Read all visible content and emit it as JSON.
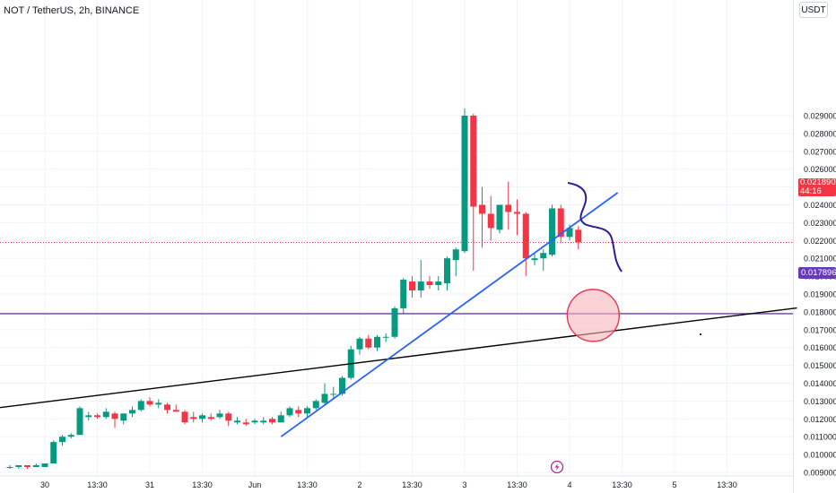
{
  "header": {
    "symbol_title": "NOT / TetherUS, 2h, BINANCE",
    "currency_button": "USDT"
  },
  "last_price": {
    "value": "0.021890",
    "countdown": "44:16",
    "color": "#f23645"
  },
  "horizontal_line": {
    "value": "0.017896",
    "color": "#673ab7"
  },
  "chart_data": {
    "type": "candlestick",
    "title": "NOT / TetherUS, 2h, BINANCE",
    "ylim": [
      0.0088,
      0.0297
    ],
    "y_ticks": [
      "0.009000",
      "0.010000",
      "0.011000",
      "0.012000",
      "0.013000",
      "0.014000",
      "0.015000",
      "0.016000",
      "0.017000",
      "0.018000",
      "0.019000",
      "0.020000",
      "0.021000",
      "0.022000",
      "0.023000",
      "0.024000",
      "0.025000",
      "0.026000",
      "0.027000",
      "0.028000",
      "0.029000"
    ],
    "x_ticks": [
      {
        "label": "30",
        "i": 4
      },
      {
        "label": "13:30",
        "i": 10
      },
      {
        "label": "31",
        "i": 16
      },
      {
        "label": "13:30",
        "i": 22
      },
      {
        "label": "Jun",
        "i": 28
      },
      {
        "label": "13:30",
        "i": 34
      },
      {
        "label": "2",
        "i": 40
      },
      {
        "label": "13:30",
        "i": 46
      },
      {
        "label": "3",
        "i": 52
      },
      {
        "label": "13:30",
        "i": 58
      },
      {
        "label": "4",
        "i": 64
      },
      {
        "label": "13:30",
        "i": 70
      },
      {
        "label": "5",
        "i": 76
      },
      {
        "label": "13:30",
        "i": 82
      }
    ],
    "up_color": "#089981",
    "down_color": "#f23645",
    "candles": [
      [
        0.0093,
        0.0094,
        0.0092,
        0.0093
      ],
      [
        0.0093,
        0.0094,
        0.0092,
        0.0094
      ],
      [
        0.0094,
        0.0094,
        0.0092,
        0.0093
      ],
      [
        0.0093,
        0.0095,
        0.0093,
        0.0094
      ],
      [
        0.0093,
        0.0095,
        0.0093,
        0.0095
      ],
      [
        0.0095,
        0.0108,
        0.0095,
        0.0107
      ],
      [
        0.0107,
        0.0111,
        0.0105,
        0.011
      ],
      [
        0.011,
        0.0112,
        0.0109,
        0.0111
      ],
      [
        0.0111,
        0.0127,
        0.0111,
        0.0126
      ],
      [
        0.0121,
        0.0124,
        0.0119,
        0.0122
      ],
      [
        0.0122,
        0.0123,
        0.012,
        0.0121
      ],
      [
        0.0121,
        0.0126,
        0.012,
        0.0124
      ],
      [
        0.0123,
        0.0124,
        0.0115,
        0.012
      ],
      [
        0.0119,
        0.0123,
        0.0117,
        0.0123
      ],
      [
        0.0123,
        0.0127,
        0.0121,
        0.0125
      ],
      [
        0.0125,
        0.0131,
        0.0124,
        0.013
      ],
      [
        0.013,
        0.0132,
        0.0127,
        0.0128
      ],
      [
        0.0128,
        0.0131,
        0.0126,
        0.0129
      ],
      [
        0.0128,
        0.0129,
        0.0123,
        0.0125
      ],
      [
        0.0125,
        0.0128,
        0.0124,
        0.0124
      ],
      [
        0.0124,
        0.0125,
        0.0117,
        0.0118
      ],
      [
        0.0121,
        0.0124,
        0.0118,
        0.012
      ],
      [
        0.012,
        0.0123,
        0.0118,
        0.0122
      ],
      [
        0.0121,
        0.0123,
        0.0119,
        0.012
      ],
      [
        0.0121,
        0.0125,
        0.012,
        0.0123
      ],
      [
        0.0123,
        0.0124,
        0.0116,
        0.0119
      ],
      [
        0.0118,
        0.0121,
        0.0117,
        0.0119
      ],
      [
        0.0118,
        0.012,
        0.0116,
        0.0117
      ],
      [
        0.0118,
        0.012,
        0.0117,
        0.0119
      ],
      [
        0.0118,
        0.0121,
        0.0117,
        0.0119
      ],
      [
        0.012,
        0.0121,
        0.0117,
        0.0118
      ],
      [
        0.0118,
        0.0124,
        0.0118,
        0.0122
      ],
      [
        0.0122,
        0.0127,
        0.0121,
        0.0126
      ],
      [
        0.0125,
        0.0127,
        0.0121,
        0.0123
      ],
      [
        0.0123,
        0.0127,
        0.0121,
        0.0126
      ],
      [
        0.0126,
        0.0131,
        0.0125,
        0.013
      ],
      [
        0.0129,
        0.014,
        0.0128,
        0.0134
      ],
      [
        0.0134,
        0.0138,
        0.0131,
        0.0134
      ],
      [
        0.0134,
        0.0144,
        0.0133,
        0.0143
      ],
      [
        0.0143,
        0.0161,
        0.0142,
        0.0159
      ],
      [
        0.0159,
        0.0166,
        0.0156,
        0.0165
      ],
      [
        0.0165,
        0.0167,
        0.0159,
        0.016
      ],
      [
        0.016,
        0.0167,
        0.0158,
        0.0166
      ],
      [
        0.0166,
        0.0168,
        0.0163,
        0.0166
      ],
      [
        0.0166,
        0.0183,
        0.0165,
        0.0182
      ],
      [
        0.0182,
        0.0199,
        0.0179,
        0.0198
      ],
      [
        0.0197,
        0.02,
        0.0188,
        0.0192
      ],
      [
        0.0192,
        0.0209,
        0.0188,
        0.0197
      ],
      [
        0.0197,
        0.02,
        0.0193,
        0.0195
      ],
      [
        0.0195,
        0.02,
        0.0192,
        0.0197
      ],
      [
        0.0196,
        0.0211,
        0.0192,
        0.021
      ],
      [
        0.0209,
        0.0216,
        0.02,
        0.0215
      ],
      [
        0.0214,
        0.0294,
        0.0213,
        0.029
      ],
      [
        0.029,
        0.0291,
        0.0203,
        0.0239
      ],
      [
        0.024,
        0.025,
        0.0216,
        0.0235
      ],
      [
        0.0235,
        0.0245,
        0.022,
        0.0227
      ],
      [
        0.0226,
        0.024,
        0.0224,
        0.024
      ],
      [
        0.024,
        0.0253,
        0.0226,
        0.0236
      ],
      [
        0.0236,
        0.0243,
        0.0223,
        0.0235
      ],
      [
        0.0235,
        0.0236,
        0.02,
        0.021
      ],
      [
        0.0209,
        0.0213,
        0.0206,
        0.021
      ],
      [
        0.021,
        0.0215,
        0.0203,
        0.0213
      ],
      [
        0.0212,
        0.024,
        0.0211,
        0.0238
      ],
      [
        0.0238,
        0.024,
        0.0219,
        0.0222
      ],
      [
        0.0222,
        0.0229,
        0.022,
        0.0227
      ],
      [
        0.0226,
        0.0228,
        0.0215,
        0.0219
      ]
    ]
  },
  "drawings": {
    "black_trendline": {
      "from": {
        "i": -9,
        "y": 0.01215
      },
      "to": {
        "i": 90,
        "y": 0.01822
      },
      "color": "#000000"
    },
    "blue_trendline": {
      "from": {
        "i": 31,
        "y": 0.011
      },
      "to": {
        "i": 69.5,
        "y": 0.02468
      },
      "color": "#2962ff"
    },
    "projection_path": {
      "color": "#311b92"
    },
    "target_circle": {
      "center": {
        "i": 66.7,
        "y": 0.0178
      },
      "fill": "#f8b4bb",
      "stroke": "#e53950"
    }
  }
}
